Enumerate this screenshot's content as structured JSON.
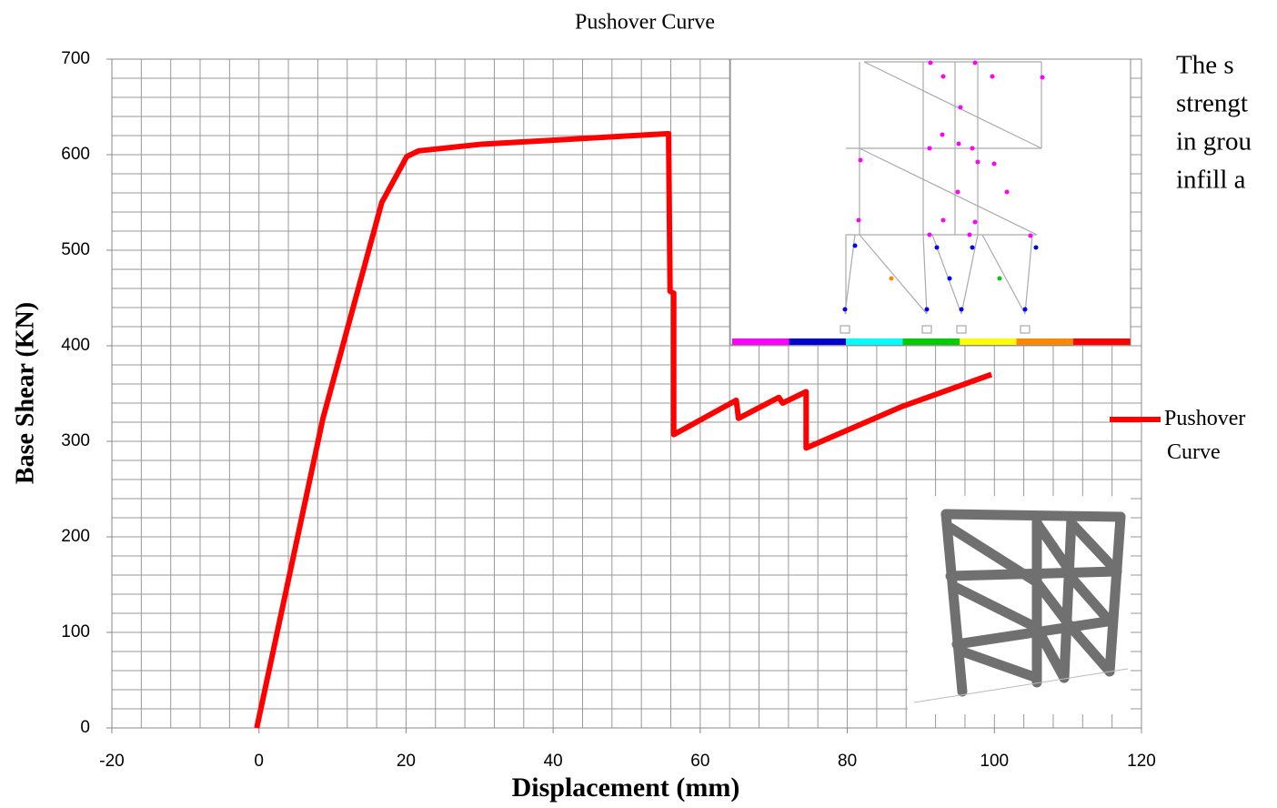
{
  "chart_data": {
    "type": "line",
    "title": "Pushover Curve",
    "x_label": "Displacement (mm)",
    "y_label": "Base Shear (KN)",
    "xlim": [
      -20,
      120
    ],
    "xticks": [
      -20,
      0,
      20,
      40,
      60,
      80,
      100,
      120
    ],
    "ylim": [
      0,
      700
    ],
    "yticks": [
      0,
      100,
      200,
      300,
      400,
      500,
      600,
      700
    ],
    "grid": true,
    "minor_grid": {
      "x": 4,
      "y": 20
    },
    "legend": "right",
    "series": [
      {
        "name": "Pushover Curve",
        "color": "#ff0000",
        "x": [
          -0.3,
          8.7,
          16.7,
          20.1,
          21.7,
          30.3,
          55.7,
          55.9,
          56.4,
          56.4,
          64.9,
          65.2,
          70.7,
          71.2,
          74.4,
          74.4,
          87.3,
          99.6
        ],
        "values": [
          0,
          324,
          550,
          598,
          604,
          611,
          622,
          457,
          455,
          307,
          343,
          324,
          346,
          340,
          352,
          293,
          336,
          370
        ]
      }
    ],
    "side_text": [
      "The s",
      "strengt",
      "in grou",
      "infill a"
    ]
  }
}
